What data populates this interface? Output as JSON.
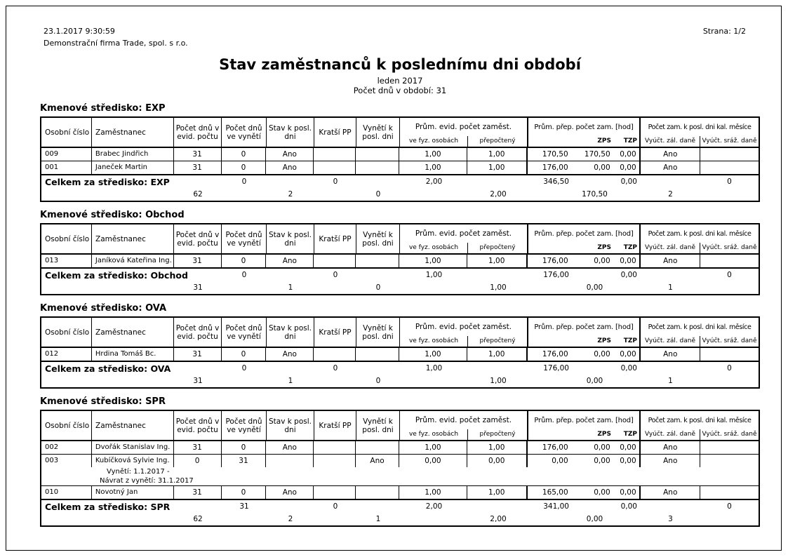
{
  "report": {
    "generated_at": "23.1.2017 9:30:59",
    "company": "Demonstrační firma Trade, spol. s r.o.",
    "page_info": "Strana: 1/2",
    "title": "Stav zaměstnanců k poslednímu dni období",
    "period": "leden 2017",
    "days_in_period": "Počet dnů v období: 31"
  },
  "columns": {
    "osobni_cislo": "Osobní číslo",
    "zamestnanec": "Zaměstnanec",
    "pocet_dnu_evid": "Počet dnů v evid. počtu",
    "pocet_dnu_vyneti": "Počet dnů ve vynětí",
    "stav_posl": "Stav k posl. dni",
    "kratsi_pp": "Kratší PP",
    "vyneti_posl": "Vynětí k posl. dni",
    "prum_evid_group": "Prům. evid. počet zaměst.",
    "ve_fyz_osobach": "ve fyz. osobách",
    "prepocteny": "přepočtený",
    "prum_prep_group": "Prům. přep. počet zam. [hod]",
    "zps": "ZPS",
    "tzp": "TZP",
    "pocet_zam_group": "Počet zam. k posl. dni kal. měsíce",
    "vyuct_zal_dane": "Vyúčt. zál. daně",
    "vyuct_sraz_dane": "Vyúčt. sráž. daně"
  },
  "tables": [
    {
      "section_title": "Kmenové středisko: EXP",
      "rows": [
        {
          "id": "009",
          "name": "Brabec Jindřich",
          "days_evid": "31",
          "days_vyneti": "0",
          "stav_posl": "Ano",
          "kratsi_pp": "",
          "vyneti_posl": "",
          "fyz": "1,00",
          "prepocteny": "1,00",
          "hod": "170,50",
          "zps": "170,50",
          "tzp": "0,00",
          "zal_dane": "Ano",
          "sraz_dane": ""
        },
        {
          "id": "001",
          "name": "Janeček Martin",
          "days_evid": "31",
          "days_vyneti": "0",
          "stav_posl": "Ano",
          "kratsi_pp": "",
          "vyneti_posl": "",
          "fyz": "1,00",
          "prepocteny": "1,00",
          "hod": "176,00",
          "zps": "0,00",
          "tzp": "0,00",
          "zal_dane": "Ano",
          "sraz_dane": ""
        }
      ],
      "total_label": "Celkem za středisko: EXP",
      "totals_line1": {
        "days_vyneti": "0",
        "kratsi_pp": "0",
        "fyz": "2,00",
        "hod": "346,50",
        "tzp": "0,00",
        "sraz_dane": "0"
      },
      "totals_line2": {
        "days_evid": "62",
        "stav_posl": "2",
        "vyneti_posl": "0",
        "prepocteny": "2,00",
        "zps": "170,50",
        "zal_dane": "2"
      }
    },
    {
      "section_title": "Kmenové středisko: Obchod",
      "rows": [
        {
          "id": "013",
          "name": "Janíková Kateřina Ing.",
          "days_evid": "31",
          "days_vyneti": "0",
          "stav_posl": "Ano",
          "kratsi_pp": "",
          "vyneti_posl": "",
          "fyz": "1,00",
          "prepocteny": "1,00",
          "hod": "176,00",
          "zps": "0,00",
          "tzp": "0,00",
          "zal_dane": "Ano",
          "sraz_dane": ""
        }
      ],
      "total_label": "Celkem za středisko: Obchod",
      "totals_line1": {
        "days_vyneti": "0",
        "kratsi_pp": "0",
        "fyz": "1,00",
        "hod": "176,00",
        "tzp": "0,00",
        "sraz_dane": "0"
      },
      "totals_line2": {
        "days_evid": "31",
        "stav_posl": "1",
        "vyneti_posl": "0",
        "prepocteny": "1,00",
        "zps": "0,00",
        "zal_dane": "1"
      }
    },
    {
      "section_title": "Kmenové středisko: OVA",
      "rows": [
        {
          "id": "012",
          "name": "Hrdina Tomáš Bc.",
          "days_evid": "31",
          "days_vyneti": "0",
          "stav_posl": "Ano",
          "kratsi_pp": "",
          "vyneti_posl": "",
          "fyz": "1,00",
          "prepocteny": "1,00",
          "hod": "176,00",
          "zps": "0,00",
          "tzp": "0,00",
          "zal_dane": "Ano",
          "sraz_dane": ""
        }
      ],
      "total_label": "Celkem za středisko: OVA",
      "totals_line1": {
        "days_vyneti": "0",
        "kratsi_pp": "0",
        "fyz": "1,00",
        "hod": "176,00",
        "tzp": "0,00",
        "sraz_dane": "0"
      },
      "totals_line2": {
        "days_evid": "31",
        "stav_posl": "1",
        "vyneti_posl": "0",
        "prepocteny": "1,00",
        "zps": "0,00",
        "zal_dane": "1"
      }
    },
    {
      "section_title": "Kmenové středisko: SPR",
      "rows": [
        {
          "id": "002",
          "name": "Dvořák Stanislav Ing.",
          "days_evid": "31",
          "days_vyneti": "0",
          "stav_posl": "Ano",
          "kratsi_pp": "",
          "vyneti_posl": "",
          "fyz": "1,00",
          "prepocteny": "1,00",
          "hod": "176,00",
          "zps": "0,00",
          "tzp": "0,00",
          "zal_dane": "Ano",
          "sraz_dane": ""
        },
        {
          "id": "003",
          "name": "Kubíčková Sylvie Ing.",
          "days_evid": "0",
          "days_vyneti": "31",
          "stav_posl": "",
          "kratsi_pp": "",
          "vyneti_posl": "Ano",
          "fyz": "0,00",
          "prepocteny": "0,00",
          "hod": "0,00",
          "zps": "0,00",
          "tzp": "0,00",
          "zal_dane": "Ano",
          "sraz_dane": "",
          "notes": [
            "Vynětí: 1.1.2017 -",
            "Návrat z vynětí: 31.1.2017"
          ]
        },
        {
          "id": "010",
          "name": "Novotný Jan",
          "days_evid": "31",
          "days_vyneti": "0",
          "stav_posl": "Ano",
          "kratsi_pp": "",
          "vyneti_posl": "",
          "fyz": "1,00",
          "prepocteny": "1,00",
          "hod": "165,00",
          "zps": "0,00",
          "tzp": "0,00",
          "zal_dane": "Ano",
          "sraz_dane": ""
        }
      ],
      "total_label": "Celkem za středisko: SPR",
      "totals_line1": {
        "days_vyneti": "31",
        "kratsi_pp": "0",
        "fyz": "2,00",
        "hod": "341,00",
        "tzp": "0,00",
        "sraz_dane": "0"
      },
      "totals_line2": {
        "days_evid": "62",
        "stav_posl": "2",
        "vyneti_posl": "1",
        "prepocteny": "2,00",
        "zps": "0,00",
        "zal_dane": "3"
      }
    }
  ]
}
